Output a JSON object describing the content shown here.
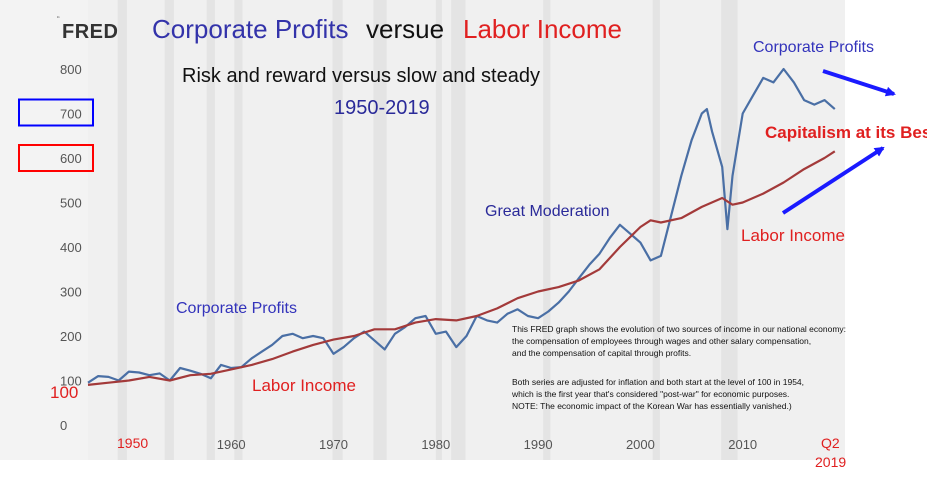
{
  "brand": {
    "logo_text": "FRED",
    "logo_mark": "chart-line-icon"
  },
  "title": {
    "part1": "Corporate Profits",
    "part2": "versue",
    "part3": "Labor Income",
    "subtitle": "Risk and reward versus slow and steady",
    "years": "1950-2019"
  },
  "annotations": {
    "corporate_profits_top": "Corporate Profits",
    "capitalism": "Capitalism at its Best",
    "great_moderation": "Great Moderation",
    "labor_income_right": "Labor Income",
    "corporate_profits_left": "Corporate Profits",
    "labor_income_left": "Labor Income",
    "note_lines": [
      "This FRED graph shows the evolution of two sources of income in our national economy:",
      "the compensation of employees through wages and other salary compensation,",
      "and the compensation of capital through profits.",
      "",
      "Both series are adjusted for inflation and both start at the level of 100 in 1954,",
      "which is the first year that's considered \"post-war\" for economic purposes.",
      "NOTE: The economic impact of the Korean War has essentially vanished.)"
    ],
    "label_100": "100",
    "label_1950": "1950",
    "label_q2": "Q2",
    "label_2019": "2019"
  },
  "colors": {
    "profits": "#4a6fa5",
    "labor": "#a33a3a",
    "recession": "#e4e4e4",
    "title_blue": "#3333aa",
    "title_red": "#e02020",
    "arrow": "#1a1aff",
    "box_blue": "#0000ff",
    "box_red": "#ff0000",
    "axis_text": "#555555"
  },
  "chart_data": {
    "type": "line",
    "x_unit": "year",
    "xlim": [
      1946,
      2020
    ],
    "ylim": [
      0,
      850
    ],
    "y_ticks": [
      0,
      100,
      200,
      300,
      400,
      500,
      600,
      700,
      800
    ],
    "x_ticks": [
      1960,
      1970,
      1980,
      1990,
      2000,
      2010
    ],
    "grid": false,
    "highlighted_ticks": [
      700,
      600
    ],
    "recessions": [
      [
        1948.9,
        1949.8
      ],
      [
        1953.5,
        1954.4
      ],
      [
        1957.6,
        1958.4
      ],
      [
        1960.3,
        1961.1
      ],
      [
        1969.9,
        1970.9
      ],
      [
        1973.9,
        1975.2
      ],
      [
        1980.0,
        1980.6
      ],
      [
        1981.5,
        1982.9
      ],
      [
        1990.5,
        1991.2
      ],
      [
        2001.2,
        2001.9
      ],
      [
        2007.9,
        2009.5
      ]
    ],
    "series": [
      {
        "name": "Corporate Profits",
        "points": [
          [
            1946.0,
            95
          ],
          [
            1947.0,
            110
          ],
          [
            1948.0,
            108
          ],
          [
            1949.0,
            100
          ],
          [
            1950.0,
            120
          ],
          [
            1951.0,
            118
          ],
          [
            1952.0,
            112
          ],
          [
            1953.0,
            116
          ],
          [
            1954.0,
            100
          ],
          [
            1955.0,
            128
          ],
          [
            1956.0,
            122
          ],
          [
            1957.0,
            115
          ],
          [
            1958.0,
            105
          ],
          [
            1959.0,
            135
          ],
          [
            1960.0,
            128
          ],
          [
            1961.0,
            130
          ],
          [
            1962.0,
            150
          ],
          [
            1963.0,
            165
          ],
          [
            1964.0,
            180
          ],
          [
            1965.0,
            200
          ],
          [
            1966.0,
            205
          ],
          [
            1967.0,
            195
          ],
          [
            1968.0,
            200
          ],
          [
            1969.0,
            195
          ],
          [
            1970.0,
            160
          ],
          [
            1971.0,
            175
          ],
          [
            1972.0,
            195
          ],
          [
            1973.0,
            210
          ],
          [
            1974.0,
            190
          ],
          [
            1975.0,
            170
          ],
          [
            1976.0,
            205
          ],
          [
            1977.0,
            220
          ],
          [
            1978.0,
            240
          ],
          [
            1979.0,
            245
          ],
          [
            1980.0,
            205
          ],
          [
            1981.0,
            210
          ],
          [
            1982.0,
            175
          ],
          [
            1983.0,
            200
          ],
          [
            1984.0,
            245
          ],
          [
            1985.0,
            235
          ],
          [
            1986.0,
            230
          ],
          [
            1987.0,
            250
          ],
          [
            1988.0,
            260
          ],
          [
            1989.0,
            245
          ],
          [
            1990.0,
            240
          ],
          [
            1991.0,
            255
          ],
          [
            1992.0,
            275
          ],
          [
            1993.0,
            300
          ],
          [
            1994.0,
            330
          ],
          [
            1995.0,
            360
          ],
          [
            1996.0,
            385
          ],
          [
            1997.0,
            420
          ],
          [
            1998.0,
            450
          ],
          [
            1999.0,
            430
          ],
          [
            2000.0,
            410
          ],
          [
            2001.0,
            370
          ],
          [
            2002.0,
            380
          ],
          [
            2003.0,
            470
          ],
          [
            2004.0,
            560
          ],
          [
            2005.0,
            640
          ],
          [
            2006.0,
            700
          ],
          [
            2006.5,
            710
          ],
          [
            2007.0,
            660
          ],
          [
            2008.0,
            580
          ],
          [
            2008.5,
            440
          ],
          [
            2009.0,
            560
          ],
          [
            2010.0,
            700
          ],
          [
            2011.0,
            740
          ],
          [
            2012.0,
            780
          ],
          [
            2013.0,
            770
          ],
          [
            2014.0,
            800
          ],
          [
            2015.0,
            770
          ],
          [
            2016.0,
            730
          ],
          [
            2017.0,
            720
          ],
          [
            2018.0,
            730
          ],
          [
            2019.0,
            710
          ]
        ]
      },
      {
        "name": "Labor Income",
        "points": [
          [
            1946.0,
            90
          ],
          [
            1948.0,
            95
          ],
          [
            1950.0,
            100
          ],
          [
            1952.0,
            108
          ],
          [
            1954.0,
            100
          ],
          [
            1956.0,
            112
          ],
          [
            1958.0,
            115
          ],
          [
            1960.0,
            125
          ],
          [
            1962.0,
            135
          ],
          [
            1964.0,
            148
          ],
          [
            1966.0,
            165
          ],
          [
            1968.0,
            180
          ],
          [
            1970.0,
            192
          ],
          [
            1972.0,
            200
          ],
          [
            1974.0,
            215
          ],
          [
            1976.0,
            215
          ],
          [
            1978.0,
            230
          ],
          [
            1980.0,
            238
          ],
          [
            1982.0,
            235
          ],
          [
            1984.0,
            245
          ],
          [
            1986.0,
            262
          ],
          [
            1988.0,
            285
          ],
          [
            1990.0,
            300
          ],
          [
            1992.0,
            310
          ],
          [
            1994.0,
            325
          ],
          [
            1996.0,
            350
          ],
          [
            1998.0,
            400
          ],
          [
            2000.0,
            445
          ],
          [
            2001.0,
            460
          ],
          [
            2002.0,
            455
          ],
          [
            2004.0,
            465
          ],
          [
            2006.0,
            490
          ],
          [
            2008.0,
            510
          ],
          [
            2009.0,
            495
          ],
          [
            2010.0,
            500
          ],
          [
            2012.0,
            520
          ],
          [
            2014.0,
            545
          ],
          [
            2016.0,
            575
          ],
          [
            2018.0,
            600
          ],
          [
            2019.0,
            615
          ]
        ]
      }
    ]
  }
}
